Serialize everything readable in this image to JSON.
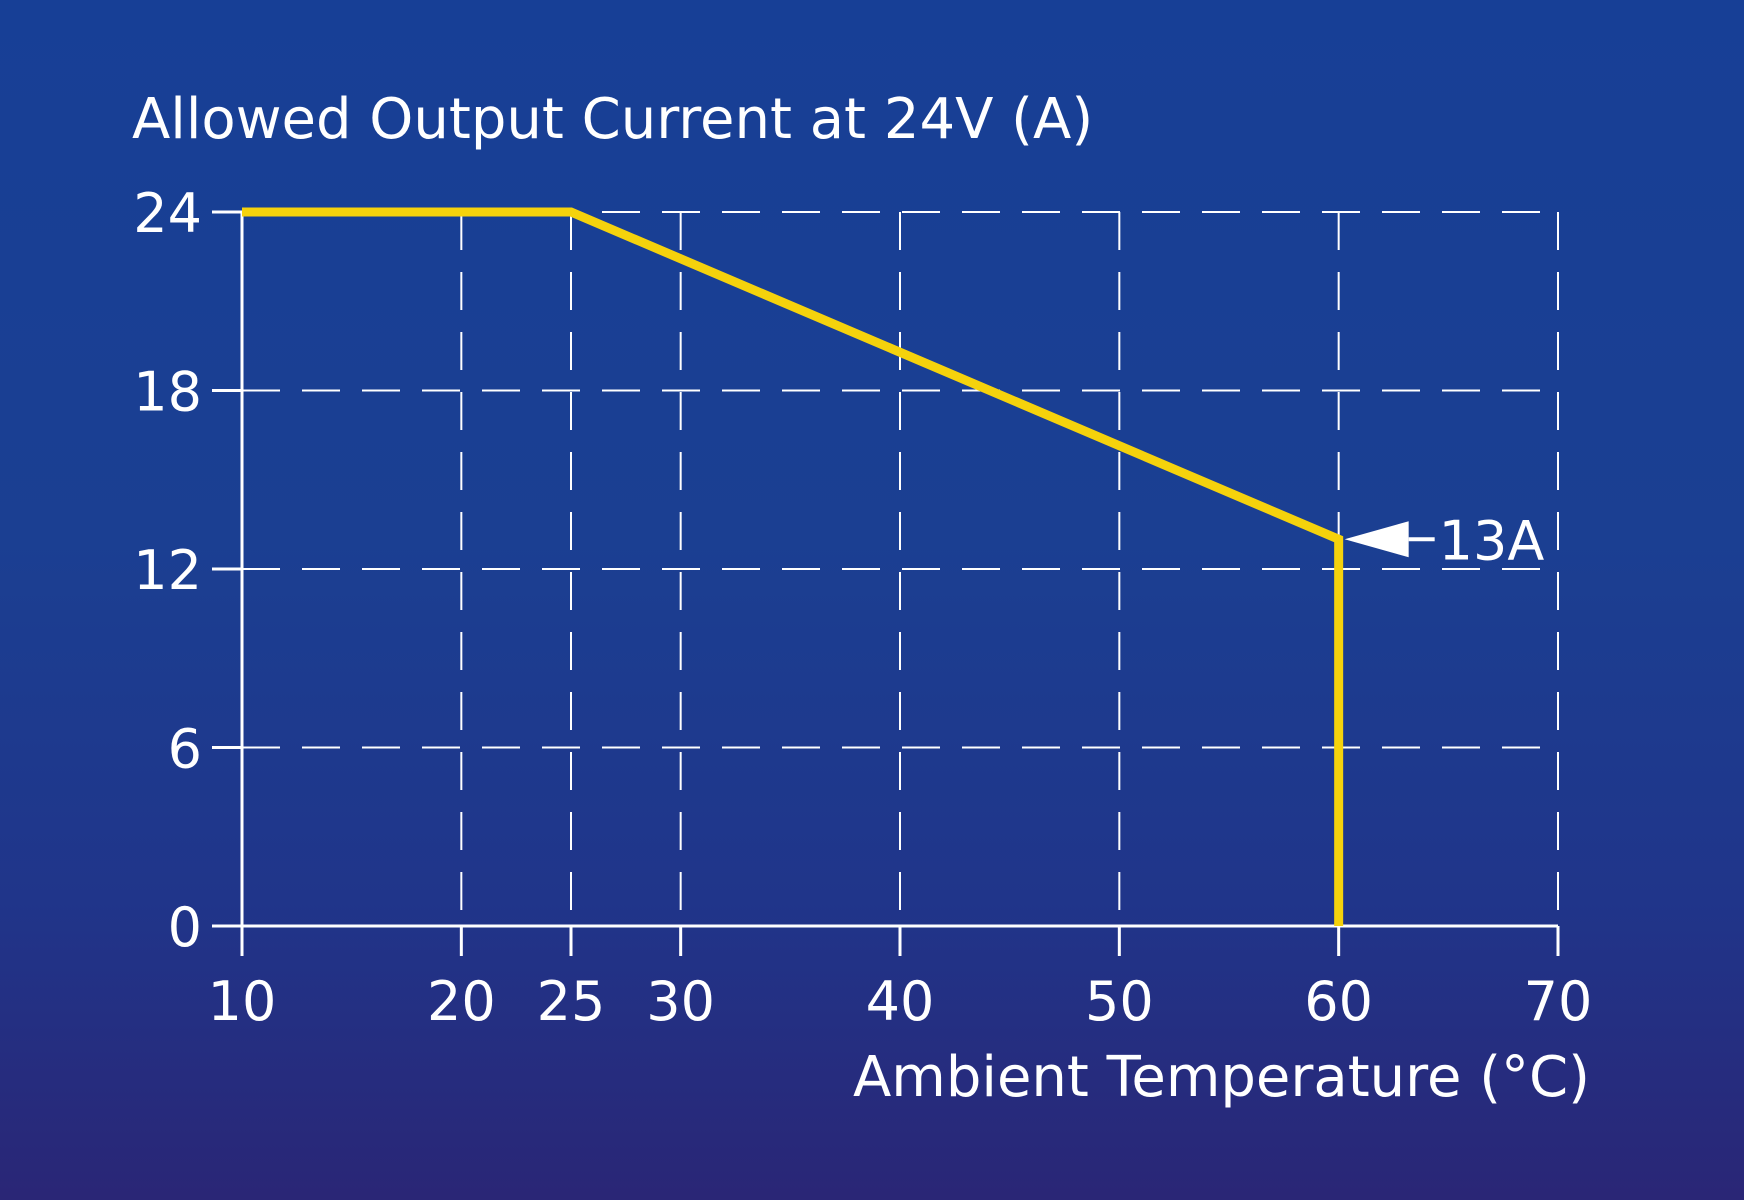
{
  "chart_data": {
    "type": "line",
    "title": "Allowed Output Current at 24V (A)",
    "xlabel": "Ambient Temperature (°C)",
    "ylabel": "Allowed Output Current at 24V (A)",
    "xlim": [
      10,
      70
    ],
    "ylim": [
      0,
      24
    ],
    "x_ticks": [
      10,
      20,
      25,
      30,
      40,
      50,
      60,
      70
    ],
    "x_tick_labels": [
      "10",
      "20",
      "25",
      "30",
      "40",
      "50",
      "60",
      "70"
    ],
    "y_ticks": [
      0,
      6,
      12,
      18,
      24
    ],
    "y_tick_labels": [
      "0",
      "6",
      "12",
      "18",
      "24"
    ],
    "grid": true,
    "series": [
      {
        "name": "Allowed Output Current",
        "color": "#f5d20c",
        "x": [
          10,
          25,
          60,
          60
        ],
        "y": [
          24,
          24,
          13,
          0
        ]
      }
    ],
    "annotations": [
      {
        "text": "13A",
        "x": 60,
        "y": 13,
        "arrow": "pointing-left"
      }
    ]
  },
  "colors": {
    "background_top": "#173f96",
    "background_bottom": "#2a2676",
    "axis": "#ffffff",
    "grid": "#ffffff",
    "line": "#f5d20c"
  }
}
